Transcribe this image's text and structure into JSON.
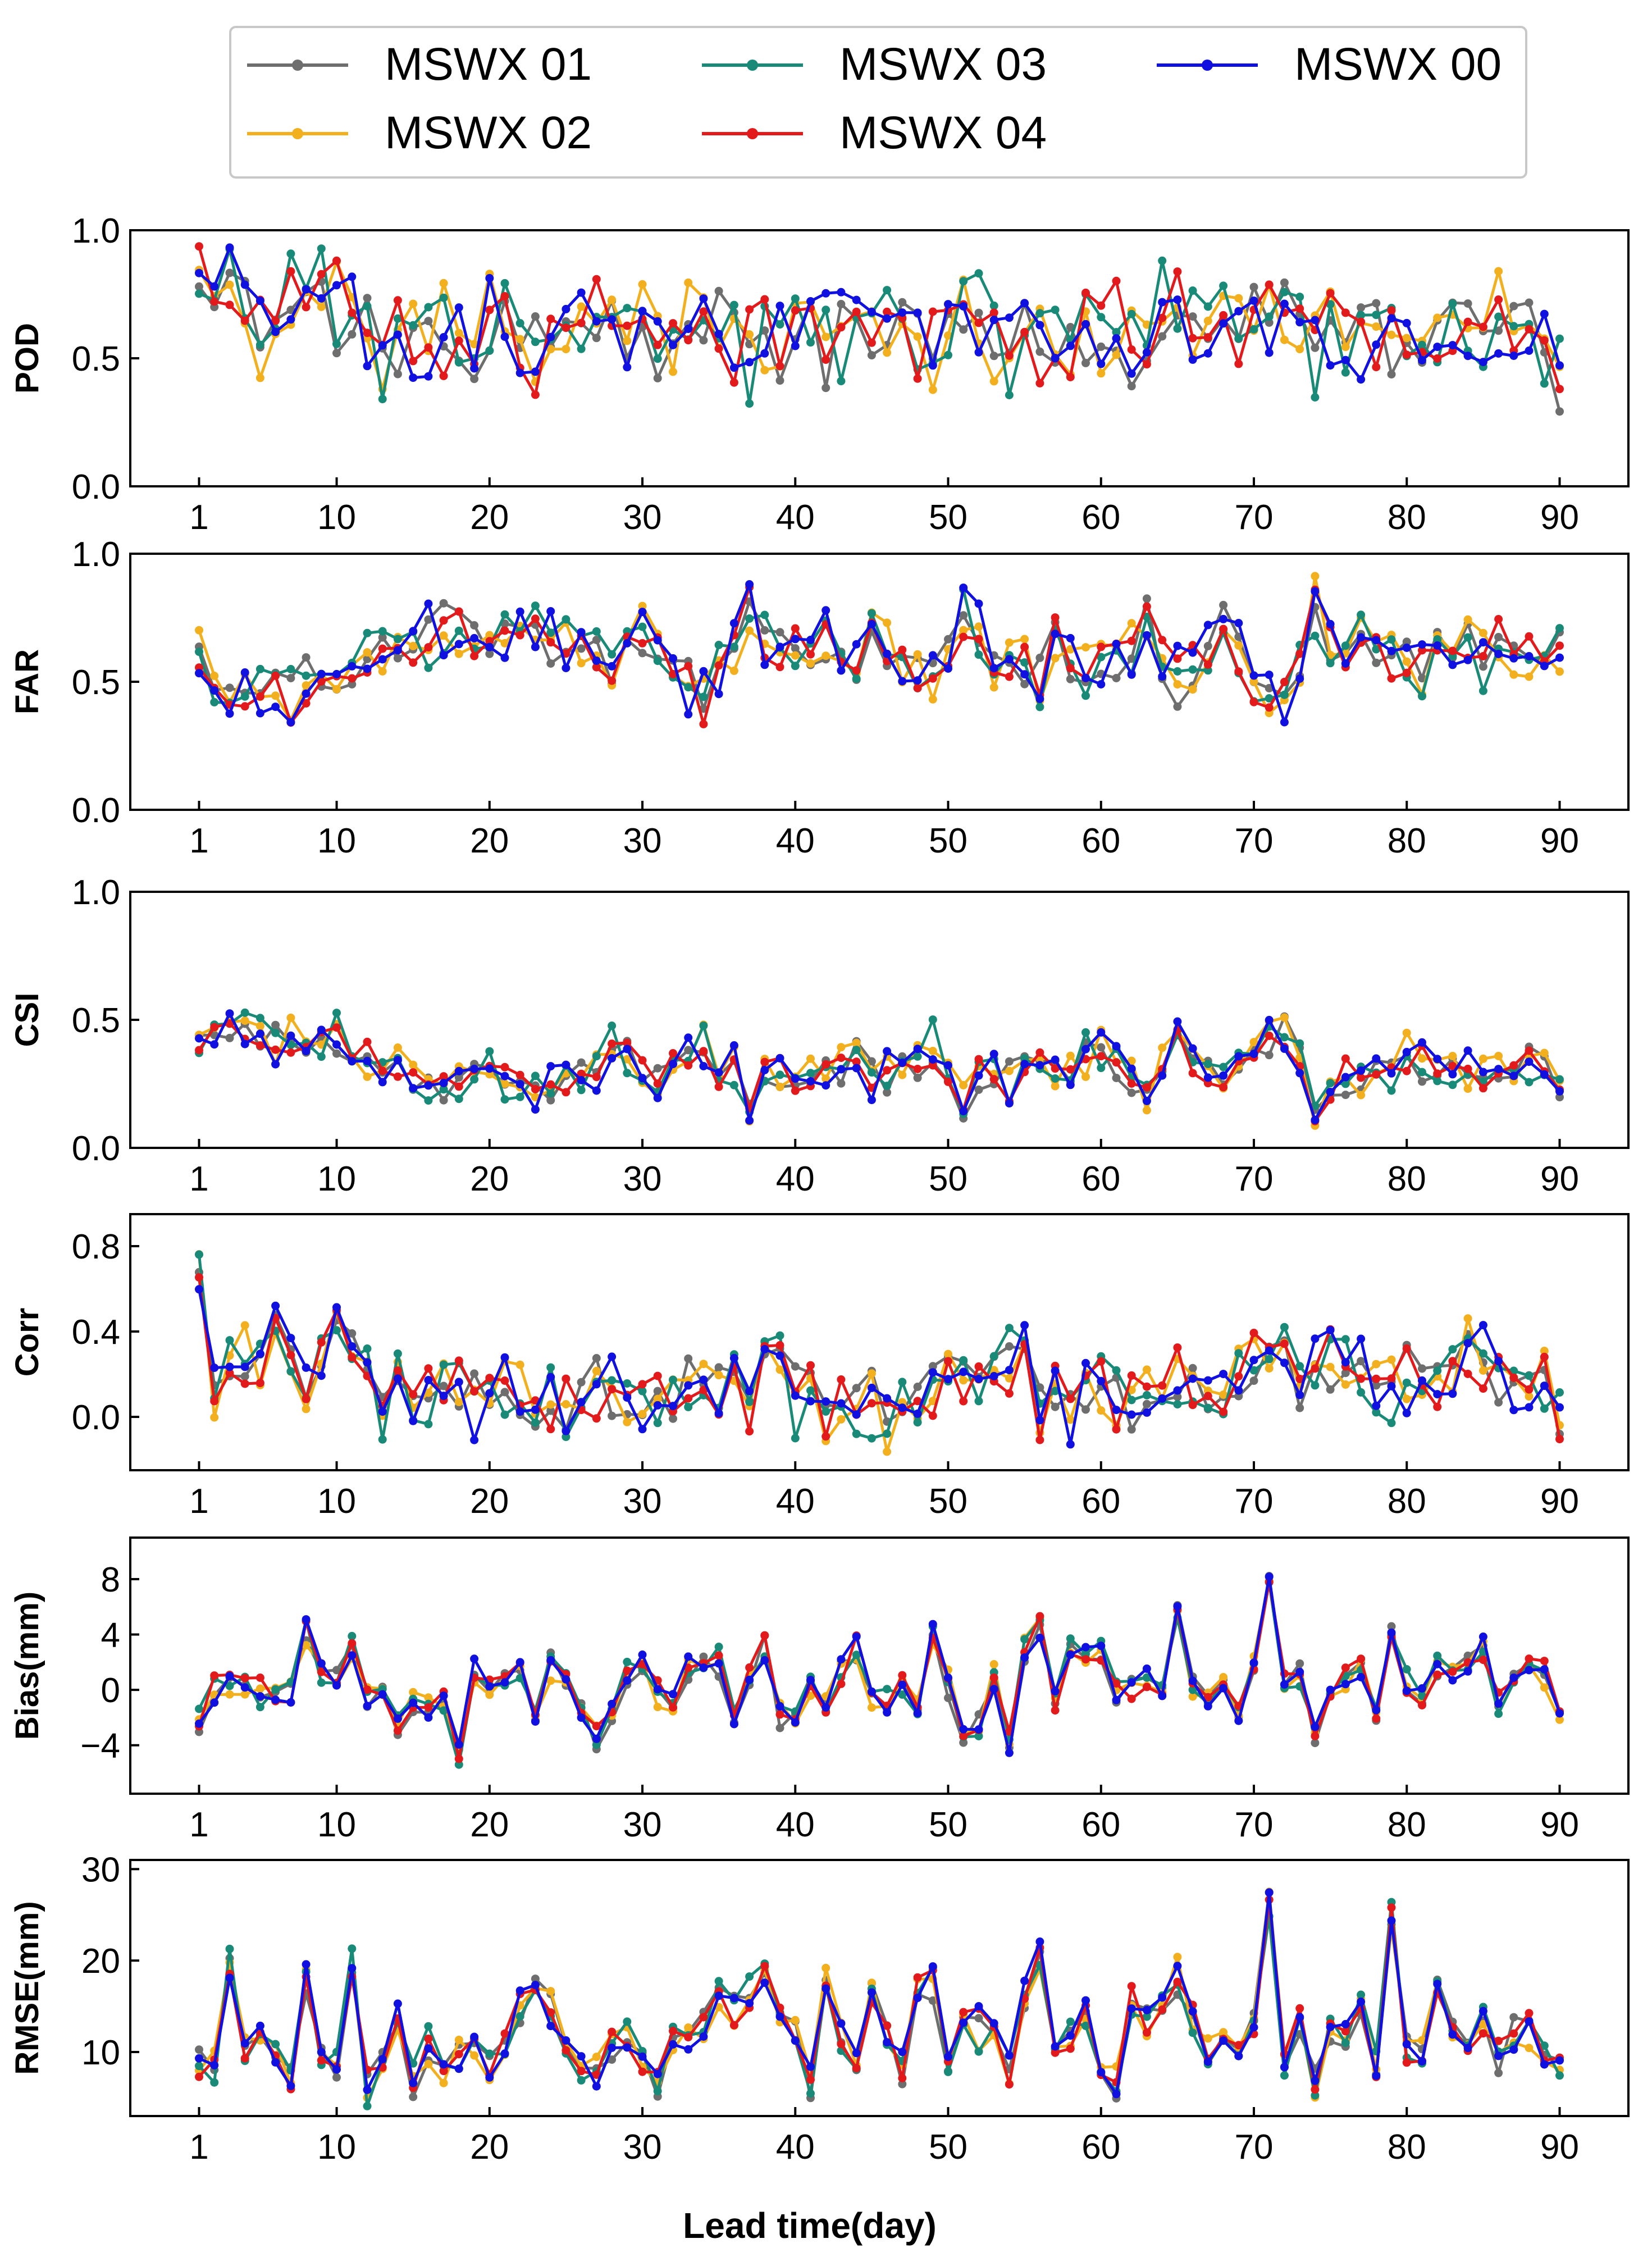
{
  "chart_data": {
    "type": "line",
    "xlabel": "Lead time(day)",
    "xlim": [
      -3.5,
      94.5
    ],
    "x_ticks": [
      1,
      10,
      20,
      30,
      40,
      50,
      60,
      70,
      80,
      90
    ],
    "legend": {
      "placement": "top-center",
      "columns": 3,
      "entries": [
        {
          "name": "MSWX 01",
          "color": "#6e6e6e"
        },
        {
          "name": "MSWX 02",
          "color": "#f2b01e"
        },
        {
          "name": "MSWX 03",
          "color": "#1a8a78"
        },
        {
          "name": "MSWX 04",
          "color": "#e31a1c"
        },
        {
          "name": "MSWX 00",
          "color": "#1010e0"
        }
      ]
    },
    "panels": [
      {
        "ylabel": "POD",
        "ylim": [
          0.0,
          1.0
        ],
        "yticks": [
          0.0,
          0.5,
          1.0
        ],
        "tick_labels": [
          "0.0",
          "0.5",
          "1.0"
        ],
        "base": [
          0.88,
          0.8,
          0.86,
          0.74,
          0.58,
          0.68,
          0.78,
          0.72,
          0.74,
          0.7,
          0.72,
          0.66,
          0.42,
          0.58,
          0.56,
          0.58,
          0.6,
          0.64,
          0.56,
          0.7,
          0.66,
          0.62,
          0.5,
          0.66,
          0.52,
          0.68,
          0.66,
          0.62,
          0.56,
          0.6,
          0.54,
          0.58,
          0.64,
          0.6,
          0.66,
          0.58,
          0.52,
          0.6,
          0.52,
          0.56,
          0.62,
          0.58,
          0.6,
          0.7,
          0.62,
          0.6,
          0.64,
          0.58,
          0.56,
          0.62,
          0.78,
          0.66,
          0.58,
          0.52,
          0.62,
          0.56,
          0.6,
          0.54,
          0.64,
          0.6,
          0.62,
          0.58,
          0.54,
          0.66,
          0.7,
          0.6,
          0.56,
          0.58,
          0.62,
          0.66,
          0.7,
          0.64,
          0.58,
          0.52,
          0.6,
          0.62,
          0.58,
          0.56,
          0.6,
          0.6,
          0.56,
          0.6,
          0.54,
          0.58,
          0.6,
          0.64,
          0.62,
          0.6,
          0.56,
          0.42
        ],
        "amp": 0.15,
        "min": 0.12,
        "max": 0.98
      },
      {
        "ylabel": "FAR",
        "ylim": [
          0.0,
          1.0
        ],
        "yticks": [
          0.0,
          0.5,
          1.0
        ],
        "tick_labels": [
          "0.0",
          "0.5",
          "1.0"
        ],
        "base": [
          0.58,
          0.52,
          0.46,
          0.44,
          0.48,
          0.5,
          0.46,
          0.48,
          0.5,
          0.52,
          0.54,
          0.58,
          0.66,
          0.64,
          0.62,
          0.68,
          0.72,
          0.7,
          0.66,
          0.68,
          0.66,
          0.7,
          0.72,
          0.68,
          0.64,
          0.6,
          0.66,
          0.5,
          0.62,
          0.72,
          0.7,
          0.58,
          0.46,
          0.44,
          0.56,
          0.62,
          0.78,
          0.64,
          0.6,
          0.68,
          0.58,
          0.66,
          0.62,
          0.56,
          0.7,
          0.66,
          0.58,
          0.6,
          0.5,
          0.62,
          0.8,
          0.68,
          0.56,
          0.62,
          0.58,
          0.52,
          0.66,
          0.6,
          0.54,
          0.56,
          0.58,
          0.62,
          0.7,
          0.6,
          0.5,
          0.58,
          0.62,
          0.7,
          0.6,
          0.52,
          0.44,
          0.44,
          0.56,
          0.8,
          0.7,
          0.66,
          0.64,
          0.66,
          0.64,
          0.54,
          0.58,
          0.64,
          0.6,
          0.62,
          0.58,
          0.62,
          0.6,
          0.62,
          0.58,
          0.64
        ],
        "amp": 0.1,
        "min": 0.25,
        "max": 0.95
      },
      {
        "ylabel": "CSI",
        "ylim": [
          0.0,
          1.0
        ],
        "yticks": [
          0.0,
          0.5,
          1.0
        ],
        "tick_labels": [
          "0.0",
          "0.5",
          "1.0"
        ],
        "base": [
          0.38,
          0.42,
          0.48,
          0.46,
          0.42,
          0.4,
          0.46,
          0.44,
          0.42,
          0.44,
          0.38,
          0.34,
          0.26,
          0.3,
          0.28,
          0.24,
          0.22,
          0.24,
          0.28,
          0.34,
          0.26,
          0.24,
          0.2,
          0.26,
          0.3,
          0.28,
          0.3,
          0.4,
          0.34,
          0.26,
          0.24,
          0.34,
          0.4,
          0.42,
          0.3,
          0.32,
          0.16,
          0.28,
          0.3,
          0.22,
          0.3,
          0.28,
          0.3,
          0.36,
          0.26,
          0.3,
          0.32,
          0.34,
          0.4,
          0.3,
          0.16,
          0.28,
          0.3,
          0.24,
          0.32,
          0.34,
          0.3,
          0.32,
          0.36,
          0.36,
          0.34,
          0.3,
          0.22,
          0.34,
          0.42,
          0.32,
          0.3,
          0.24,
          0.34,
          0.4,
          0.44,
          0.44,
          0.36,
          0.12,
          0.24,
          0.28,
          0.28,
          0.26,
          0.28,
          0.36,
          0.34,
          0.3,
          0.32,
          0.3,
          0.32,
          0.32,
          0.3,
          0.32,
          0.32,
          0.26
        ],
        "amp": 0.07,
        "min": 0.05,
        "max": 0.68
      },
      {
        "ylabel": "Corr",
        "ylim": [
          -0.25,
          0.95
        ],
        "yticks": [
          0.0,
          0.4,
          0.8
        ],
        "tick_labels": [
          "0.0",
          "0.4",
          "0.8"
        ],
        "base": [
          0.66,
          0.14,
          0.26,
          0.28,
          0.22,
          0.4,
          0.24,
          0.16,
          0.3,
          0.4,
          0.36,
          0.3,
          0.06,
          0.2,
          0.1,
          0.14,
          0.16,
          0.1,
          0.04,
          0.06,
          0.12,
          0.08,
          0.02,
          0.1,
          0.06,
          0.04,
          0.1,
          0.16,
          0.1,
          0.04,
          0.06,
          0.12,
          0.18,
          0.14,
          0.1,
          0.2,
          0.04,
          0.32,
          0.3,
          0.06,
          0.2,
          0.0,
          0.08,
          0.04,
          0.06,
          0.0,
          0.08,
          0.1,
          0.14,
          0.24,
          0.2,
          0.1,
          0.2,
          0.28,
          0.36,
          0.04,
          0.1,
          0.02,
          0.12,
          0.16,
          0.1,
          0.04,
          0.1,
          0.12,
          0.2,
          0.14,
          0.08,
          0.1,
          0.24,
          0.26,
          0.3,
          0.28,
          0.22,
          0.2,
          0.28,
          0.3,
          0.22,
          0.16,
          0.14,
          0.18,
          0.2,
          0.14,
          0.22,
          0.3,
          0.26,
          0.2,
          0.16,
          0.22,
          0.18,
          0.0
        ],
        "amp": 0.13,
        "min": -0.2,
        "max": 0.9
      },
      {
        "ylabel": "Bias(mm)",
        "ylim": [
          -7.5,
          11
        ],
        "yticks": [
          -4,
          0,
          4,
          8
        ],
        "tick_labels": [
          "−4",
          "0",
          "4",
          "8"
        ],
        "base": [
          -2.4,
          0.0,
          0.6,
          0.2,
          -0.4,
          -0.4,
          -0.2,
          4.4,
          1.2,
          0.8,
          3.0,
          -0.4,
          -0.4,
          -2.8,
          -1.0,
          -1.4,
          -1.0,
          -4.6,
          1.4,
          0.4,
          0.8,
          1.8,
          -2.0,
          1.6,
          1.2,
          -1.4,
          -3.2,
          -1.8,
          1.0,
          1.6,
          -0.4,
          -1.2,
          1.6,
          1.8,
          2.0,
          -2.2,
          0.8,
          3.0,
          -1.6,
          -2.6,
          0.6,
          -1.4,
          1.6,
          3.0,
          -0.4,
          -1.0,
          0.4,
          -1.6,
          4.6,
          0.6,
          -3.4,
          -2.2,
          0.6,
          -4.0,
          2.8,
          4.8,
          -0.4,
          2.8,
          2.6,
          3.0,
          -0.2,
          0.2,
          0.8,
          -0.6,
          5.6,
          0.6,
          -1.0,
          0.8,
          -1.6,
          2.4,
          8.2,
          0.6,
          1.0,
          -3.0,
          0.0,
          1.2,
          1.6,
          -1.6,
          3.8,
          0.8,
          -0.4,
          1.8,
          1.2,
          1.8,
          3.0,
          -0.8,
          0.6,
          1.6,
          1.0,
          -2.0
        ],
        "amp": 0.9,
        "min": -6.5,
        "max": 10
      },
      {
        "ylabel": "RMSE(mm)",
        "ylim": [
          3,
          31
        ],
        "yticks": [
          10,
          20,
          30
        ],
        "tick_labels": [
          "10",
          "20",
          "30"
        ],
        "base": [
          8.8,
          8.6,
          19.5,
          10.2,
          11.0,
          10.0,
          7.0,
          18.2,
          9.0,
          8.4,
          19.2,
          5.8,
          9.0,
          13.0,
          7.0,
          10.8,
          8.4,
          9.6,
          10.8,
          8.2,
          11.2,
          15.0,
          17.0,
          14.2,
          11.0,
          7.8,
          8.2,
          11.2,
          11.8,
          9.2,
          6.6,
          11.6,
          11.8,
          12.0,
          16.6,
          14.0,
          16.8,
          18.0,
          13.4,
          12.6,
          6.4,
          17.6,
          11.6,
          8.0,
          17.8,
          12.4,
          8.0,
          16.8,
          17.4,
          8.0,
          13.2,
          12.4,
          12.8,
          8.4,
          17.2,
          21.0,
          11.2,
          11.4,
          14.8,
          8.2,
          6.4,
          14.8,
          13.6,
          15.2,
          18.4,
          14.0,
          10.0,
          12.0,
          10.0,
          13.6,
          26.0,
          9.4,
          12.8,
          7.0,
          11.8,
          12.6,
          15.4,
          9.0,
          25.0,
          10.6,
          10.0,
          16.8,
          12.8,
          10.8,
          14.2,
          9.8,
          12.0,
          12.6,
          10.8,
          8.0
        ],
        "amp": 1.8,
        "min": 3.8,
        "max": 29
      }
    ]
  }
}
